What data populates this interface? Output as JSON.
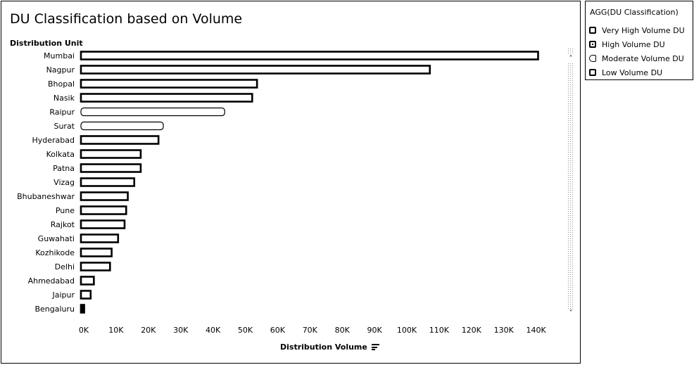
{
  "title": "DU Classification based on Volume",
  "y_header": "Distribution Unit",
  "x_title": "Distribution Volume",
  "legend": {
    "title": "AGG(DU Classification)",
    "items": [
      "Very High Volume DU",
      "High Volume DU",
      "Moderate Volume DU",
      "Low Volume DU"
    ]
  },
  "chart_data": {
    "type": "bar",
    "orientation": "horizontal",
    "categories": [
      "Mumbai",
      "Nagpur",
      "Bhopal",
      "Nasik",
      "Raipur",
      "Surat",
      "Hyderabad",
      "Kolkata",
      "Patna",
      "Vizag",
      "Bhubaneshwar",
      "Pune",
      "Rajkot",
      "Guwahati",
      "Kozhikode",
      "Delhi",
      "Ahmedabad",
      "Jaipur",
      "Bengaluru"
    ],
    "values": [
      141500,
      108000,
      54500,
      53000,
      44500,
      25500,
      24000,
      18500,
      18500,
      16500,
      14500,
      14000,
      13500,
      11500,
      9500,
      9000,
      4000,
      3000,
      1000
    ],
    "x_ticks": [
      "0K",
      "10K",
      "20K",
      "30K",
      "40K",
      "50K",
      "60K",
      "70K",
      "80K",
      "90K",
      "100K",
      "110K",
      "120K",
      "130K",
      "140K"
    ],
    "xlim": [
      0,
      145000
    ],
    "xlabel": "Distribution Volume",
    "ylabel": "Distribution Unit",
    "grid": false,
    "legend_position": "right"
  }
}
